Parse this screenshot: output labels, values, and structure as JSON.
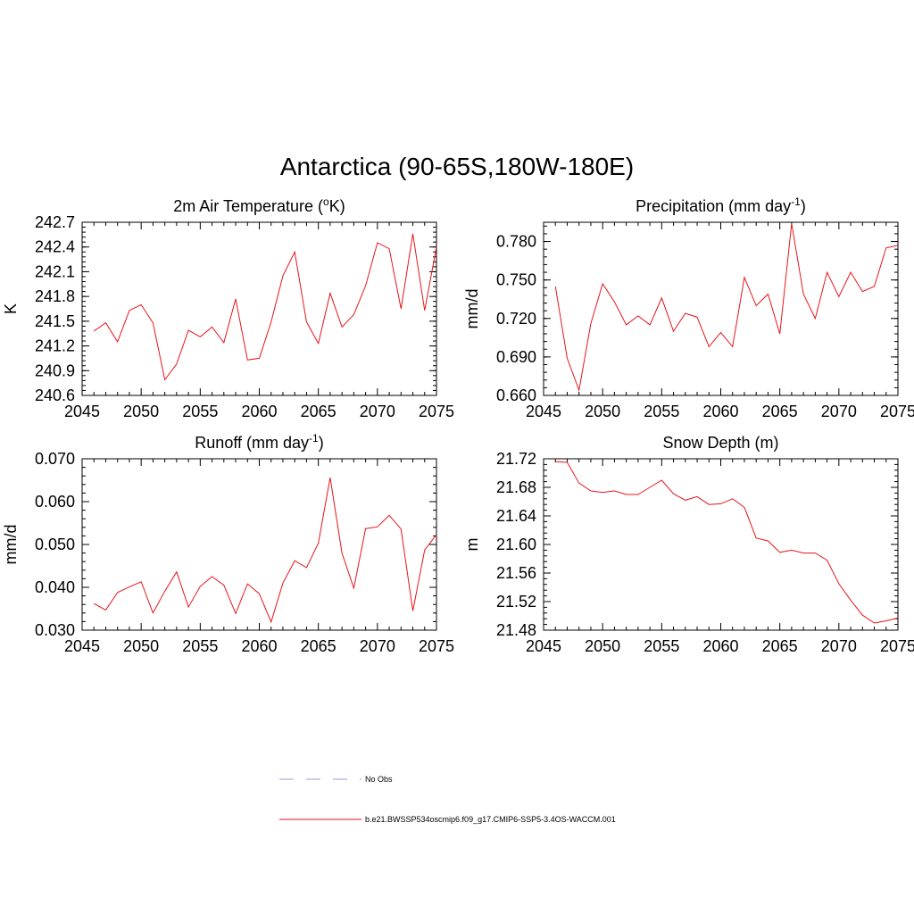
{
  "title": "Antarctica (90-65S,180W-180E)",
  "colors": {
    "model": "#e8141a",
    "obs": "#9999dd",
    "axis": "#000000"
  },
  "legend": {
    "obs_label": "No Obs",
    "model_label": "b.e21.BWSSP534oscmip6.f09_g17.CMIP6-SSP5-3.4OS-WACCM.001"
  },
  "chart_data": [
    {
      "type": "line",
      "title": "2m Air Temperature (",
      "title_sup": "o",
      "title_tail": "K)",
      "ylabel": "K",
      "xlim": [
        2045,
        2075
      ],
      "ylim": [
        240.6,
        242.7
      ],
      "xticks": [
        2045,
        2050,
        2055,
        2060,
        2065,
        2070,
        2075
      ],
      "xtick_labels": [
        "2045",
        "2050",
        "2055",
        "2060",
        "2065",
        "2070",
        "2075"
      ],
      "yticks": [
        240.6,
        240.9,
        241.2,
        241.5,
        241.8,
        242.1,
        242.4,
        242.7
      ],
      "ytick_labels": [
        "240.6",
        "240.9",
        "241.2",
        "241.5",
        "241.8",
        "242.1",
        "242.4",
        "242.7"
      ],
      "x": [
        2046,
        2047,
        2048,
        2049,
        2050,
        2051,
        2052,
        2053,
        2054,
        2055,
        2056,
        2057,
        2058,
        2059,
        2060,
        2061,
        2062,
        2063,
        2064,
        2065,
        2066,
        2067,
        2068,
        2069,
        2070,
        2071,
        2072,
        2073,
        2074,
        2075
      ],
      "series": [
        {
          "values": [
            241.38,
            241.48,
            241.25,
            241.63,
            241.7,
            241.48,
            240.79,
            240.98,
            241.39,
            241.31,
            241.43,
            241.24,
            241.77,
            241.03,
            241.05,
            241.49,
            242.05,
            242.34,
            241.49,
            241.23,
            241.84,
            241.43,
            241.58,
            241.93,
            242.45,
            242.38,
            241.65,
            242.56,
            241.63,
            242.4
          ]
        }
      ]
    },
    {
      "type": "line",
      "title": "Precipitation (mm day",
      "title_sup": "-1",
      "title_tail": ")",
      "ylabel": "mm/d",
      "xlim": [
        2045,
        2075
      ],
      "ylim": [
        0.66,
        0.795
      ],
      "xticks": [
        2045,
        2050,
        2055,
        2060,
        2065,
        2070,
        2075
      ],
      "xtick_labels": [
        "2045",
        "2050",
        "2055",
        "2060",
        "2065",
        "2070",
        "2075"
      ],
      "yticks": [
        0.66,
        0.69,
        0.72,
        0.75,
        0.78
      ],
      "ytick_labels": [
        "0.660",
        "0.690",
        "0.720",
        "0.750",
        "0.780"
      ],
      "x": [
        2046,
        2047,
        2048,
        2049,
        2050,
        2051,
        2052,
        2053,
        2054,
        2055,
        2056,
        2057,
        2058,
        2059,
        2060,
        2061,
        2062,
        2063,
        2064,
        2065,
        2066,
        2067,
        2068,
        2069,
        2070,
        2071,
        2072,
        2073,
        2074,
        2075
      ],
      "series": [
        {
          "values": [
            0.745,
            0.689,
            0.664,
            0.716,
            0.747,
            0.733,
            0.715,
            0.722,
            0.715,
            0.736,
            0.71,
            0.724,
            0.721,
            0.698,
            0.709,
            0.698,
            0.752,
            0.73,
            0.739,
            0.708,
            0.794,
            0.739,
            0.72,
            0.756,
            0.737,
            0.756,
            0.741,
            0.745,
            0.775,
            0.777
          ]
        }
      ]
    },
    {
      "type": "line",
      "title": "Runoff (mm day",
      "title_sup": "-1",
      "title_tail": ")",
      "ylabel": "mm/d",
      "xlim": [
        2045,
        2075
      ],
      "ylim": [
        0.03,
        0.07
      ],
      "xticks": [
        2045,
        2050,
        2055,
        2060,
        2065,
        2070,
        2075
      ],
      "xtick_labels": [
        "2045",
        "2050",
        "2055",
        "2060",
        "2065",
        "2070",
        "2075"
      ],
      "yticks": [
        0.03,
        0.04,
        0.05,
        0.06,
        0.07
      ],
      "ytick_labels": [
        "0.030",
        "0.040",
        "0.050",
        "0.060",
        "0.070"
      ],
      "x": [
        2046,
        2047,
        2048,
        2049,
        2050,
        2051,
        2052,
        2053,
        2054,
        2055,
        2056,
        2057,
        2058,
        2059,
        2060,
        2061,
        2062,
        2063,
        2064,
        2065,
        2066,
        2067,
        2068,
        2069,
        2070,
        2071,
        2072,
        2073,
        2074,
        2075
      ],
      "series": [
        {
          "values": [
            0.0362,
            0.0347,
            0.0388,
            0.0401,
            0.0413,
            0.034,
            0.0391,
            0.0436,
            0.0354,
            0.0402,
            0.0425,
            0.0405,
            0.0339,
            0.0408,
            0.0385,
            0.0319,
            0.041,
            0.0462,
            0.0446,
            0.0503,
            0.0656,
            0.048,
            0.0398,
            0.0537,
            0.0541,
            0.0568,
            0.0536,
            0.0345,
            0.0487,
            0.0523
          ]
        }
      ]
    },
    {
      "type": "line",
      "title": "Snow Depth (m)",
      "title_sup": "",
      "title_tail": "",
      "ylabel": "m",
      "xlim": [
        2045,
        2075
      ],
      "ylim": [
        21.48,
        21.72
      ],
      "xticks": [
        2045,
        2050,
        2055,
        2060,
        2065,
        2070,
        2075
      ],
      "xtick_labels": [
        "2045",
        "2050",
        "2055",
        "2060",
        "2065",
        "2070",
        "2075"
      ],
      "yticks": [
        21.48,
        21.52,
        21.56,
        21.6,
        21.64,
        21.68,
        21.72
      ],
      "ytick_labels": [
        "21.48",
        "21.52",
        "21.56",
        "21.60",
        "21.64",
        "21.68",
        "21.72"
      ],
      "x": [
        2046,
        2047,
        2048,
        2049,
        2050,
        2051,
        2052,
        2053,
        2054,
        2055,
        2056,
        2057,
        2058,
        2059,
        2060,
        2061,
        2062,
        2063,
        2064,
        2065,
        2066,
        2067,
        2068,
        2069,
        2070,
        2071,
        2072,
        2073,
        2074,
        2075
      ],
      "series": [
        {
          "values": [
            21.716,
            21.715,
            21.686,
            21.675,
            21.673,
            21.675,
            21.67,
            21.67,
            21.68,
            21.69,
            21.671,
            21.662,
            21.667,
            21.656,
            21.657,
            21.664,
            21.652,
            21.609,
            21.605,
            21.589,
            21.592,
            21.588,
            21.588,
            21.578,
            21.545,
            21.522,
            21.501,
            21.49,
            21.493,
            21.497
          ]
        }
      ]
    }
  ]
}
